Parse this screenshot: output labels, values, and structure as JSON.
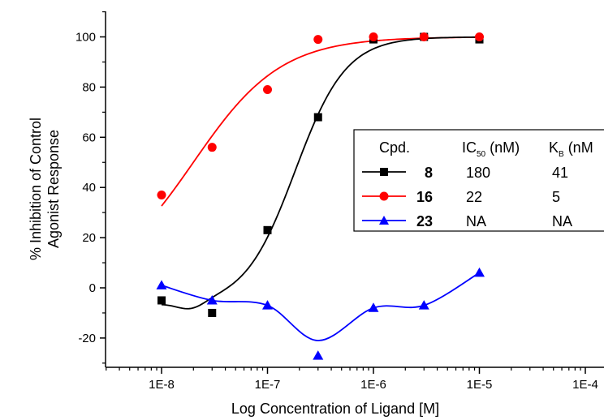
{
  "chart_data": {
    "type": "scatter",
    "xlabel": "Log Concentration of Ligand [M]",
    "ylabel_lines": [
      "% Inhibition of Control",
      "Agonist Response"
    ],
    "x_scale": "log",
    "xlim": [
      3e-09,
      0.0001
    ],
    "ylim": [
      -30,
      110
    ],
    "x_ticks": [
      1e-08,
      1e-07,
      1e-06,
      1e-05,
      0.0001
    ],
    "x_tick_labels": [
      "1E-8",
      "1E-7",
      "1E-6",
      "1E-5",
      "1E-4"
    ],
    "y_ticks": [
      -20,
      0,
      20,
      40,
      60,
      80,
      100
    ],
    "y_tick_labels": [
      "-20",
      "0",
      "20",
      "40",
      "60",
      "80",
      "100"
    ],
    "series": [
      {
        "name": "8",
        "color": "#000000",
        "marker": "square",
        "x": [
          1e-08,
          3e-08,
          1e-07,
          3e-07,
          1e-06,
          3e-06,
          1e-05
        ],
        "y": [
          -5,
          -10,
          23,
          68,
          99,
          100,
          99
        ]
      },
      {
        "name": "16",
        "color": "#ff0000",
        "marker": "circle",
        "x": [
          1e-08,
          3e-08,
          1e-07,
          3e-07,
          1e-06,
          3e-06,
          1e-05
        ],
        "y": [
          37,
          56,
          79,
          99,
          100,
          100,
          100
        ]
      },
      {
        "name": "23",
        "color": "#0000ff",
        "marker": "triangle",
        "x": [
          1e-08,
          3e-08,
          1e-07,
          3e-07,
          1e-06,
          3e-06,
          1e-05
        ],
        "y": [
          1,
          -5,
          -7,
          -27,
          -8,
          -7,
          6
        ]
      }
    ],
    "legend": {
      "placement": "right",
      "headers": [
        "Cpd.",
        "IC",
        "50",
        "(nM)",
        "K",
        "B",
        "(nM"
      ],
      "rows": [
        {
          "cpd": "8",
          "ic50": "180",
          "kb": "41"
        },
        {
          "cpd": "16",
          "ic50": "22",
          "kb": "5"
        },
        {
          "cpd": "23",
          "ic50": "NA",
          "kb": "NA"
        }
      ]
    }
  }
}
